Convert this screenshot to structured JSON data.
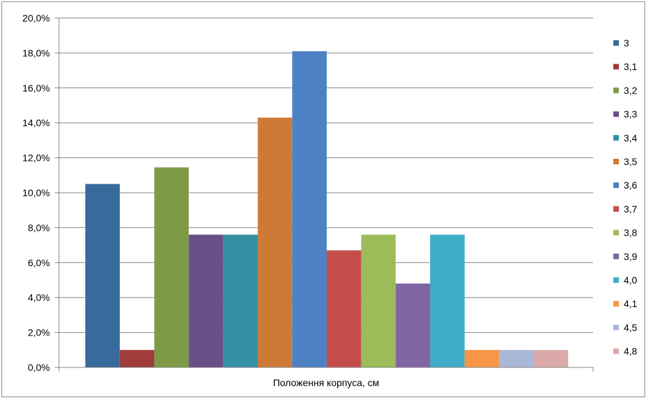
{
  "chart_data": {
    "type": "bar",
    "title": "",
    "xlabel": "Положення корпуса, см",
    "ylabel": "",
    "ylim": [
      0,
      20
    ],
    "y_unit": "%",
    "y_tick_labels": [
      "0,0%",
      "2,0%",
      "4,0%",
      "6,0%",
      "8,0%",
      "10,0%",
      "12,0%",
      "14,0%",
      "16,0%",
      "18,0%",
      "20,0%"
    ],
    "grid": true,
    "legend_position": "right",
    "series": [
      {
        "name": "3",
        "value": 10.5,
        "color": "#386a9c"
      },
      {
        "name": "3,1",
        "value": 1.0,
        "color": "#a03c3a"
      },
      {
        "name": "3,2",
        "value": 11.45,
        "color": "#7f9a46"
      },
      {
        "name": "3,3",
        "value": 7.6,
        "color": "#694f87"
      },
      {
        "name": "3,4",
        "value": 7.6,
        "color": "#3590a4"
      },
      {
        "name": "3,5",
        "value": 14.3,
        "color": "#ce7a36"
      },
      {
        "name": "3,6",
        "value": 18.1,
        "color": "#4c82c3"
      },
      {
        "name": "3,7",
        "value": 6.7,
        "color": "#c54d4b"
      },
      {
        "name": "3,8",
        "value": 7.6,
        "color": "#9cbb59"
      },
      {
        "name": "3,9",
        "value": 4.8,
        "color": "#8064a4"
      },
      {
        "name": "4,0",
        "value": 7.6,
        "color": "#40adc7"
      },
      {
        "name": "4,1",
        "value": 1.0,
        "color": "#f79646"
      },
      {
        "name": "4,5",
        "value": 1.0,
        "color": "#a9b8d8"
      },
      {
        "name": "4,8",
        "value": 1.0,
        "color": "#daa9a8"
      }
    ]
  }
}
